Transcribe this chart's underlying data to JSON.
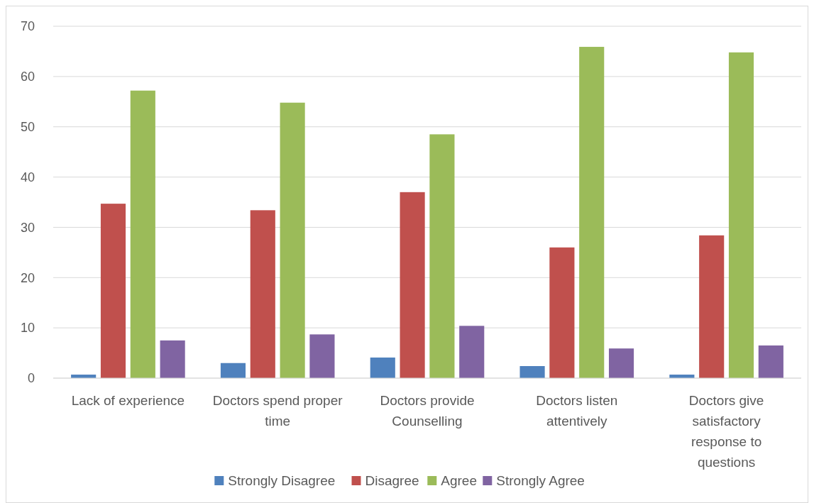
{
  "chart_data": {
    "type": "bar",
    "categories": [
      "Lack of experience",
      "Doctors spend proper time",
      "Doctors provide Counselling",
      "Doctors listen attentively",
      "Doctors give satisfactory response to questions"
    ],
    "series": [
      {
        "name": "Strongly Disagree",
        "color": "#4f81bd",
        "values": [
          0.7,
          3.0,
          4.1,
          2.4,
          0.7
        ]
      },
      {
        "name": "Disagree",
        "color": "#c0504d",
        "values": [
          34.7,
          33.4,
          37.0,
          26.0,
          28.4
        ]
      },
      {
        "name": "Agree",
        "color": "#9bbb59",
        "values": [
          57.2,
          54.8,
          48.5,
          65.9,
          64.8
        ]
      },
      {
        "name": "Strongly Agree",
        "color": "#8064a2",
        "values": [
          7.5,
          8.7,
          10.4,
          5.9,
          6.5
        ]
      }
    ],
    "ylim": [
      0,
      70
    ],
    "yticks": [
      0,
      10,
      20,
      30,
      40,
      50,
      60,
      70
    ],
    "grid": "y",
    "legend": "bottom"
  }
}
